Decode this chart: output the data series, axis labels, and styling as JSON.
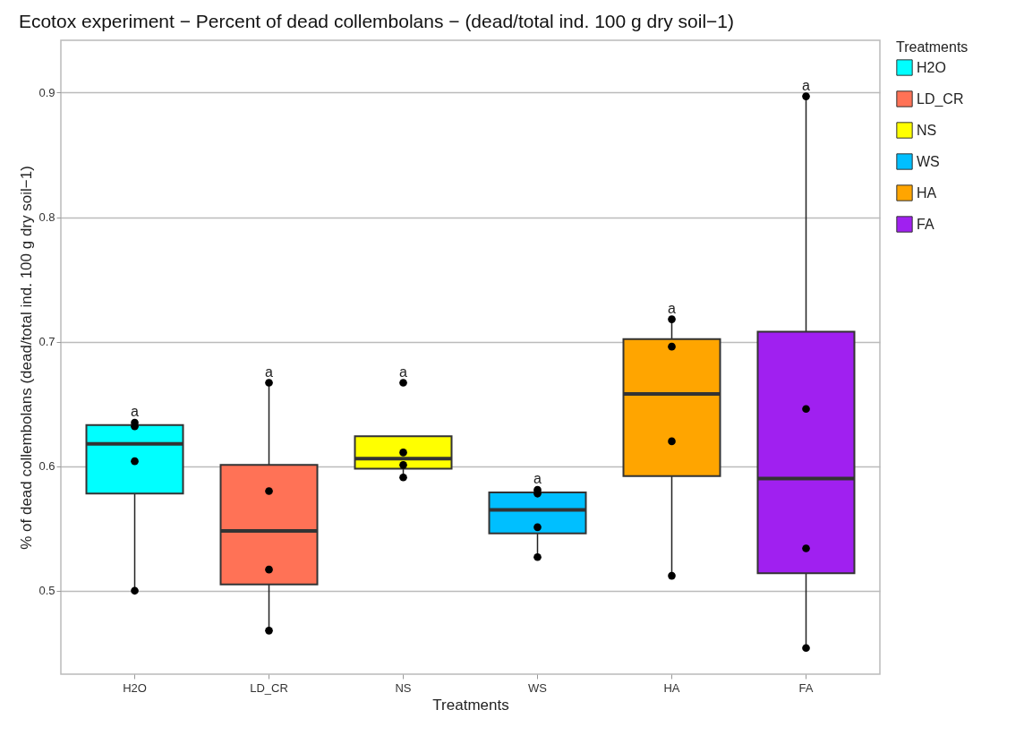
{
  "chart_data": {
    "type": "box",
    "title": "Ecotox experiment − Percent of dead collembolans − (dead/total ind. 100 g dry soil−1)",
    "xlabel": "Treatments",
    "ylabel": "% of dead collembolans (dead/total ind. 100 g dry soil−1)",
    "legend_title": "Treatments",
    "legend": "right",
    "grid": "y",
    "categories": [
      "H2O",
      "LD_CR",
      "NS",
      "WS",
      "HA",
      "FA"
    ],
    "ylim": [
      0.433,
      0.942
    ],
    "yticks": [
      0.5,
      0.6,
      0.7,
      0.8,
      0.9
    ],
    "series": [
      {
        "name": "H2O",
        "color": "#00ffff",
        "boxes": [
          {
            "low": 0.5,
            "q1": 0.578,
            "median": 0.618,
            "q3": 0.633,
            "high": 0.635
          },
          null,
          null,
          null,
          null,
          null
        ]
      },
      {
        "name": "LD_CR",
        "color": "#ff7256",
        "boxes": [
          null,
          {
            "low": 0.468,
            "q1": 0.505,
            "median": 0.548,
            "q3": 0.601,
            "high": 0.667
          },
          null,
          null,
          null,
          null
        ]
      },
      {
        "name": "NS",
        "color": "#ffff00",
        "boxes": [
          null,
          null,
          {
            "low": 0.591,
            "q1": 0.598,
            "median": 0.606,
            "q3": 0.624,
            "high": 0.624
          },
          null,
          null,
          null
        ]
      },
      {
        "name": "WS",
        "color": "#00bfff",
        "boxes": [
          null,
          null,
          null,
          {
            "low": 0.527,
            "q1": 0.546,
            "median": 0.565,
            "q3": 0.579,
            "high": 0.581
          },
          null,
          null
        ]
      },
      {
        "name": "HA",
        "color": "#ffa500",
        "boxes": [
          null,
          null,
          null,
          null,
          {
            "low": 0.512,
            "q1": 0.592,
            "median": 0.658,
            "q3": 0.702,
            "high": 0.718
          },
          null
        ]
      },
      {
        "name": "FA",
        "color": "#a020f0",
        "boxes": [
          null,
          null,
          null,
          null,
          null,
          {
            "low": 0.454,
            "q1": 0.514,
            "median": 0.59,
            "q3": 0.708,
            "high": 0.897
          }
        ]
      },
      {
        "type": "scatter",
        "color": "#000000",
        "marker": "circle",
        "x": [
          "H2O",
          "H2O",
          "H2O",
          "H2O",
          "LD_CR",
          "LD_CR",
          "LD_CR",
          "LD_CR",
          "NS",
          "NS",
          "NS",
          "NS",
          "WS",
          "WS",
          "WS",
          "WS",
          "HA",
          "HA",
          "HA",
          "HA",
          "FA",
          "FA",
          "FA",
          "FA"
        ],
        "values": [
          0.635,
          0.632,
          0.604,
          0.5,
          0.667,
          0.58,
          0.517,
          0.468,
          0.667,
          0.611,
          0.601,
          0.591,
          0.581,
          0.578,
          0.551,
          0.527,
          0.718,
          0.696,
          0.62,
          0.512,
          0.897,
          0.646,
          0.534,
          0.454
        ]
      }
    ],
    "annotations": [
      {
        "text": "a",
        "x": "H2O",
        "y": 0.635
      },
      {
        "text": "a",
        "x": "LD_CR",
        "y": 0.667
      },
      {
        "text": "a",
        "x": "NS",
        "y": 0.667
      },
      {
        "text": "a",
        "x": "WS",
        "y": 0.581
      },
      {
        "text": "a",
        "x": "HA",
        "y": 0.718
      },
      {
        "text": "a",
        "x": "FA",
        "y": 0.897
      }
    ]
  }
}
